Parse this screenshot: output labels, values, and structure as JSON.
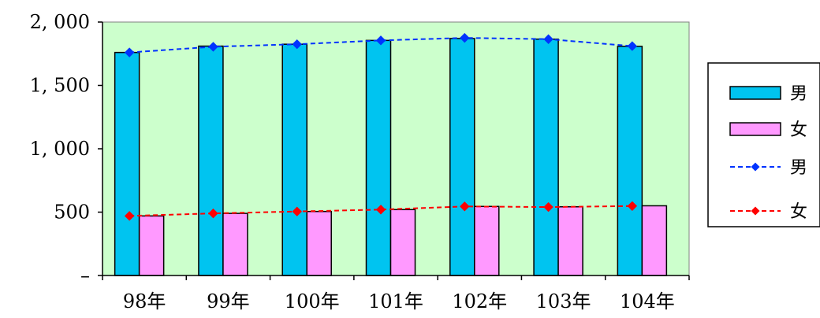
{
  "chart_data": {
    "type": "bar",
    "categories": [
      "98年",
      "99年",
      "100年",
      "101年",
      "102年",
      "103年",
      "104年"
    ],
    "series": [
      {
        "name": "男",
        "type": "bar",
        "color": "#00c4f0",
        "values": [
          1760,
          1810,
          1825,
          1855,
          1870,
          1865,
          1808
        ]
      },
      {
        "name": "女",
        "type": "bar",
        "color": "#ff99ff",
        "values": [
          470,
          490,
          505,
          520,
          545,
          542,
          550
        ]
      },
      {
        "name": "男",
        "type": "line",
        "color": "#0033ff",
        "marker": "diamond",
        "line_style": "dashed",
        "values": [
          1760,
          1805,
          1825,
          1855,
          1875,
          1865,
          1810
        ]
      },
      {
        "name": "女",
        "type": "line",
        "color": "#ff0000",
        "marker": "diamond",
        "line_style": "dashed",
        "values": [
          470,
          490,
          505,
          520,
          545,
          540,
          548
        ]
      }
    ],
    "y_ticks": [
      "–",
      "500",
      "1, 000",
      "1, 500",
      "2, 000"
    ],
    "ylim": [
      0,
      2000
    ],
    "grid": false,
    "plot_background": "#ccffcc",
    "legend_position": "right",
    "title": "",
    "xlabel": "",
    "ylabel": ""
  }
}
